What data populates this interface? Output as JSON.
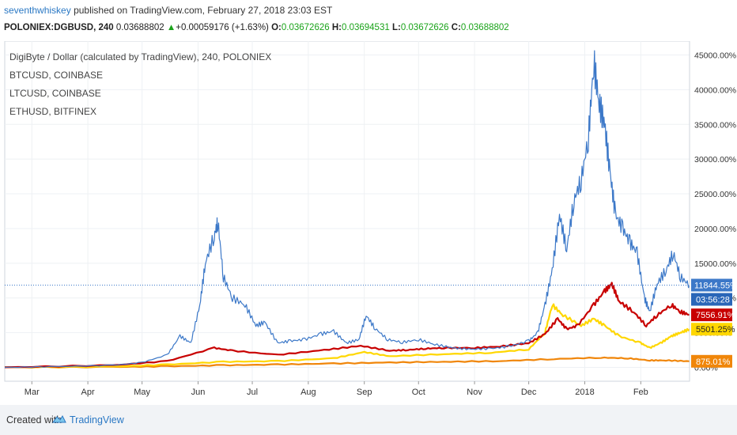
{
  "header": {
    "author": "seventhwhiskey",
    "published": "published on TradingView.com, February 27, 2018 23:03 EST",
    "symbol": "POLONIEX:DGBUSD, 240",
    "price": "0.03688802",
    "change_arrow": "▲",
    "change": "+0.00059176 (+1.63%)",
    "ohlc": [
      {
        "key": "O:",
        "value": "0.03672626"
      },
      {
        "key": "H:",
        "value": "0.03694531"
      },
      {
        "key": "L:",
        "value": "0.03672626"
      },
      {
        "key": "C:",
        "value": "0.03688802"
      }
    ]
  },
  "legend": [
    "DigiByte / Dollar (calculated by TradingView), 240, POLONIEX",
    "BTCUSD, COINBASE",
    "LTCUSD, COINBASE",
    "ETHUSD, BITFINEX"
  ],
  "price_badges": {
    "dgb": "11844.55%",
    "timer": "03:56:28",
    "btc": "7556.91%",
    "ltc": "5501.25%",
    "eth": "875.01%"
  },
  "colors": {
    "dgb": "#3c78c8",
    "btc": "#c80000",
    "ltc": "#ffd700",
    "eth": "#f0860a",
    "timer_bg": "#2a66b8"
  },
  "footer": {
    "created": "Created with",
    "brand": "TradingView",
    "logo_icon": "tradingview-logo-icon"
  },
  "chart_data": {
    "type": "line",
    "x_ticks": [
      "Mar",
      "Apr",
      "May",
      "Jun",
      "Jul",
      "Aug",
      "Sep",
      "Oct",
      "Nov",
      "Dec",
      "2018",
      "Feb"
    ],
    "y_ticks": [
      "0.00%",
      "5000.00%",
      "10000.00%",
      "15000.00%",
      "20000.00%",
      "25000.00%",
      "30000.00%",
      "35000.00%",
      "40000.00%",
      "45000.00%"
    ],
    "ylim": [
      -2000,
      47000
    ],
    "x_range": [
      "2017-02-14",
      "2018-02-28"
    ],
    "grid": true,
    "series": [
      {
        "name": "DigiByte / Dollar (calculated by TradingView), 240, POLONIEX",
        "key": "dgb",
        "points": [
          [
            "2017-02-14",
            0
          ],
          [
            "2017-03-15",
            100
          ],
          [
            "2017-04-15",
            300
          ],
          [
            "2017-05-01",
            700
          ],
          [
            "2017-05-15",
            1800
          ],
          [
            "2017-05-22",
            4500
          ],
          [
            "2017-05-28",
            3500
          ],
          [
            "2017-06-02",
            9000
          ],
          [
            "2017-06-05",
            15000
          ],
          [
            "2017-06-10",
            19000
          ],
          [
            "2017-06-12",
            21000
          ],
          [
            "2017-06-15",
            13000
          ],
          [
            "2017-06-20",
            10000
          ],
          [
            "2017-06-27",
            9000
          ],
          [
            "2017-07-03",
            6000
          ],
          [
            "2017-07-08",
            6500
          ],
          [
            "2017-07-15",
            3500
          ],
          [
            "2017-07-22",
            3800
          ],
          [
            "2017-07-30",
            4000
          ],
          [
            "2017-08-08",
            4800
          ],
          [
            "2017-08-15",
            5200
          ],
          [
            "2017-08-22",
            3500
          ],
          [
            "2017-08-29",
            4000
          ],
          [
            "2017-09-02",
            7500
          ],
          [
            "2017-09-07",
            5600
          ],
          [
            "2017-09-14",
            4000
          ],
          [
            "2017-09-22",
            3600
          ],
          [
            "2017-10-01",
            4000
          ],
          [
            "2017-10-10",
            3300
          ],
          [
            "2017-10-20",
            2800
          ],
          [
            "2017-10-30",
            2600
          ],
          [
            "2017-11-10",
            2700
          ],
          [
            "2017-11-20",
            3000
          ],
          [
            "2017-12-01",
            3800
          ],
          [
            "2017-12-06",
            5000
          ],
          [
            "2017-12-10",
            9000
          ],
          [
            "2017-12-14",
            14000
          ],
          [
            "2017-12-18",
            22000
          ],
          [
            "2017-12-22",
            17000
          ],
          [
            "2017-12-26",
            24000
          ],
          [
            "2017-12-30",
            27000
          ],
          [
            "2018-01-03",
            33000
          ],
          [
            "2018-01-06",
            44000
          ],
          [
            "2018-01-09",
            38000
          ],
          [
            "2018-01-12",
            35000
          ],
          [
            "2018-01-15",
            28000
          ],
          [
            "2018-01-18",
            22000
          ],
          [
            "2018-01-22",
            20000
          ],
          [
            "2018-01-26",
            18000
          ],
          [
            "2018-01-30",
            16500
          ],
          [
            "2018-02-03",
            10000
          ],
          [
            "2018-02-06",
            8000
          ],
          [
            "2018-02-10",
            12000
          ],
          [
            "2018-02-15",
            14000
          ],
          [
            "2018-02-19",
            16500
          ],
          [
            "2018-02-23",
            13000
          ],
          [
            "2018-02-28",
            11845
          ]
        ]
      },
      {
        "name": "BTCUSD, COINBASE",
        "key": "btc",
        "points": [
          [
            "2017-02-14",
            0
          ],
          [
            "2017-04-15",
            300
          ],
          [
            "2017-05-15",
            900
          ],
          [
            "2017-06-10",
            2800
          ],
          [
            "2017-06-20",
            2400
          ],
          [
            "2017-07-15",
            1800
          ],
          [
            "2017-08-10",
            2500
          ],
          [
            "2017-08-30",
            3100
          ],
          [
            "2017-09-15",
            2400
          ],
          [
            "2017-09-25",
            2500
          ],
          [
            "2017-10-05",
            2700
          ],
          [
            "2017-10-15",
            2800
          ],
          [
            "2017-11-01",
            2800
          ],
          [
            "2017-11-15",
            3000
          ],
          [
            "2017-12-01",
            3500
          ],
          [
            "2017-12-10",
            4800
          ],
          [
            "2017-12-17",
            7000
          ],
          [
            "2017-12-22",
            5500
          ],
          [
            "2017-12-28",
            6000
          ],
          [
            "2018-01-06",
            9000
          ],
          [
            "2018-01-12",
            11000
          ],
          [
            "2018-01-16",
            12000
          ],
          [
            "2018-01-20",
            9500
          ],
          [
            "2018-01-28",
            8000
          ],
          [
            "2018-02-04",
            6000
          ],
          [
            "2018-02-10",
            7500
          ],
          [
            "2018-02-18",
            9000
          ],
          [
            "2018-02-23",
            8000
          ],
          [
            "2018-02-28",
            7557
          ]
        ]
      },
      {
        "name": "LTCUSD, COINBASE",
        "key": "ltc",
        "points": [
          [
            "2017-02-14",
            0
          ],
          [
            "2017-04-15",
            100
          ],
          [
            "2017-05-15",
            400
          ],
          [
            "2017-06-15",
            800
          ],
          [
            "2017-07-15",
            900
          ],
          [
            "2017-08-15",
            1300
          ],
          [
            "2017-09-01",
            2200
          ],
          [
            "2017-09-15",
            1600
          ],
          [
            "2017-10-15",
            1900
          ],
          [
            "2017-11-10",
            2100
          ],
          [
            "2017-12-01",
            2600
          ],
          [
            "2017-12-10",
            5000
          ],
          [
            "2017-12-14",
            9000
          ],
          [
            "2017-12-20",
            7500
          ],
          [
            "2017-12-30",
            6000
          ],
          [
            "2018-01-06",
            7000
          ],
          [
            "2018-01-12",
            6000
          ],
          [
            "2018-01-20",
            4500
          ],
          [
            "2018-02-01",
            3500
          ],
          [
            "2018-02-06",
            2800
          ],
          [
            "2018-02-12",
            3500
          ],
          [
            "2018-02-18",
            4500
          ],
          [
            "2018-02-23",
            5000
          ],
          [
            "2018-02-28",
            5501
          ]
        ]
      },
      {
        "name": "ETHUSD, BITFINEX",
        "key": "eth",
        "points": [
          [
            "2017-02-14",
            0
          ],
          [
            "2017-04-15",
            50
          ],
          [
            "2017-05-15",
            150
          ],
          [
            "2017-06-15",
            300
          ],
          [
            "2017-07-15",
            400
          ],
          [
            "2017-08-15",
            550
          ],
          [
            "2017-09-15",
            700
          ],
          [
            "2017-10-15",
            800
          ],
          [
            "2017-11-15",
            900
          ],
          [
            "2017-12-15",
            1200
          ],
          [
            "2018-01-10",
            1400
          ],
          [
            "2018-01-25",
            1300
          ],
          [
            "2018-02-06",
            1000
          ],
          [
            "2018-02-15",
            1000
          ],
          [
            "2018-02-28",
            875
          ]
        ]
      }
    ]
  }
}
